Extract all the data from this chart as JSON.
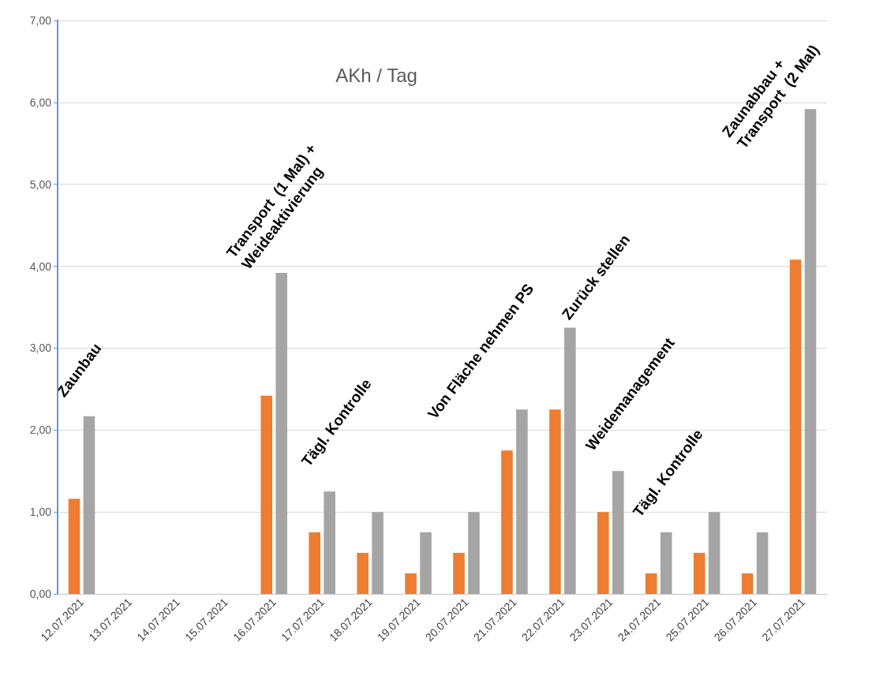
{
  "chart_data": {
    "type": "bar",
    "title": "AKh / Tag",
    "categories": [
      "12.07.2021",
      "13.07.2021",
      "14.07.2021",
      "15.07.2021",
      "16.07.2021",
      "17.07.2021",
      "18.07.2021",
      "19.07.2021",
      "20.07.2021",
      "21.07.2021",
      "22.07.2021",
      "23.07.2021",
      "24.07.2021",
      "25.07.2021",
      "26.07.2021",
      "27.07.2021"
    ],
    "series": [
      {
        "color": "#ed7d31",
        "values": [
          1.16,
          null,
          null,
          null,
          2.42,
          0.75,
          0.5,
          0.25,
          0.5,
          1.75,
          2.25,
          1.0,
          0.25,
          0.5,
          0.25,
          4.08
        ]
      },
      {
        "color": "#a5a5a5",
        "values": [
          2.17,
          null,
          null,
          null,
          3.92,
          1.25,
          1.0,
          0.75,
          1.0,
          2.25,
          3.25,
          1.5,
          0.75,
          1.0,
          0.75,
          5.92
        ]
      }
    ],
    "ylim": [
      0,
      7
    ],
    "yticks": [
      {
        "value": 0,
        "label": "0,00"
      },
      {
        "value": 1,
        "label": "1,00"
      },
      {
        "value": 2,
        "label": "2,00"
      },
      {
        "value": 3,
        "label": "3,00"
      },
      {
        "value": 4,
        "label": "4,00"
      },
      {
        "value": 5,
        "label": "5,00"
      },
      {
        "value": 6,
        "label": "6,00"
      },
      {
        "value": 7,
        "label": "7,00"
      }
    ],
    "grid": "y",
    "annotations": [
      "Zaunbau",
      "Transport  (1 Mal) +\nWeideaktivierung",
      "Tägl. Kontrolle",
      "Von Fläche nehmen PS",
      "Zurück stellen",
      "Weidemanagement",
      "Tägl. Kontrolle",
      "Zaunabbau +\nTransport  (2 Mal)"
    ]
  }
}
